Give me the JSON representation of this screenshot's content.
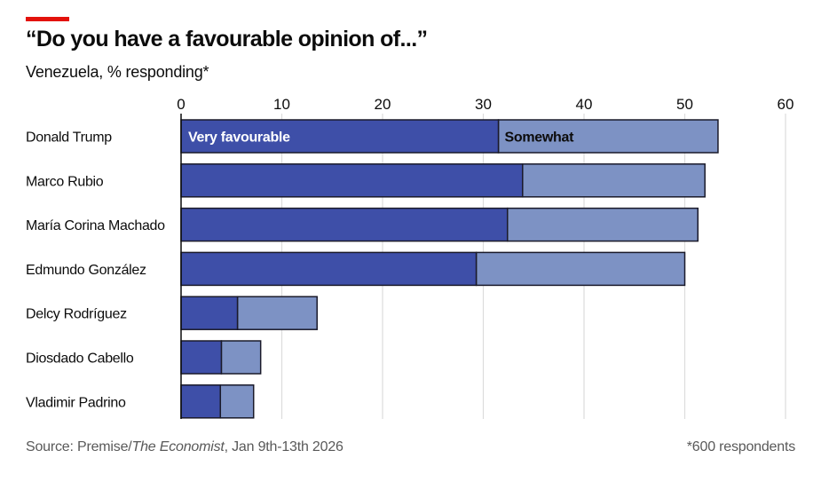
{
  "header": {
    "title": "“Do you have a favourable opinion of...”",
    "subtitle": "Venezuela, % responding*"
  },
  "footer": {
    "source_prefix": "Source: Premise/",
    "source_italic": "The Economist",
    "source_suffix": ", Jan 9th-13th 2026",
    "note": "*600 respondents"
  },
  "colors": {
    "accent_rule": "#e3120b",
    "very_favourable": "#3e4fa8",
    "somewhat": "#7d92c4",
    "bar_outline": "#1a1a2a",
    "gridline": "#dcdcdc",
    "axis": "#0c0c0c"
  },
  "chart_data": {
    "type": "bar",
    "orientation": "horizontal",
    "stacked": true,
    "title": "“Do you have a favourable opinion of...”",
    "subtitle": "Venezuela, % responding*",
    "xlabel": "",
    "ylabel": "",
    "xlim": [
      0,
      60
    ],
    "xticks": [
      0,
      10,
      20,
      30,
      40,
      50,
      60
    ],
    "tick_labels": [
      "0",
      "10",
      "20",
      "30",
      "40",
      "50",
      "60"
    ],
    "grid": true,
    "categories": [
      "Donald Trump",
      "Marco Rubio",
      "María Corina Machado",
      "Edmundo González",
      "Delcy Rodríguez",
      "Diosdado Cabello",
      "Vladimir Padrino"
    ],
    "series": [
      {
        "name": "Very favourable",
        "values": [
          31.5,
          33.9,
          32.4,
          29.3,
          5.6,
          4.0,
          3.9
        ]
      },
      {
        "name": "Somewhat",
        "values": [
          21.8,
          18.1,
          18.9,
          20.7,
          7.9,
          3.9,
          3.3
        ]
      }
    ],
    "inline_labels": {
      "very": "Very favourable",
      "somewhat": "Somewhat"
    },
    "legend": "inline-first-bar"
  }
}
